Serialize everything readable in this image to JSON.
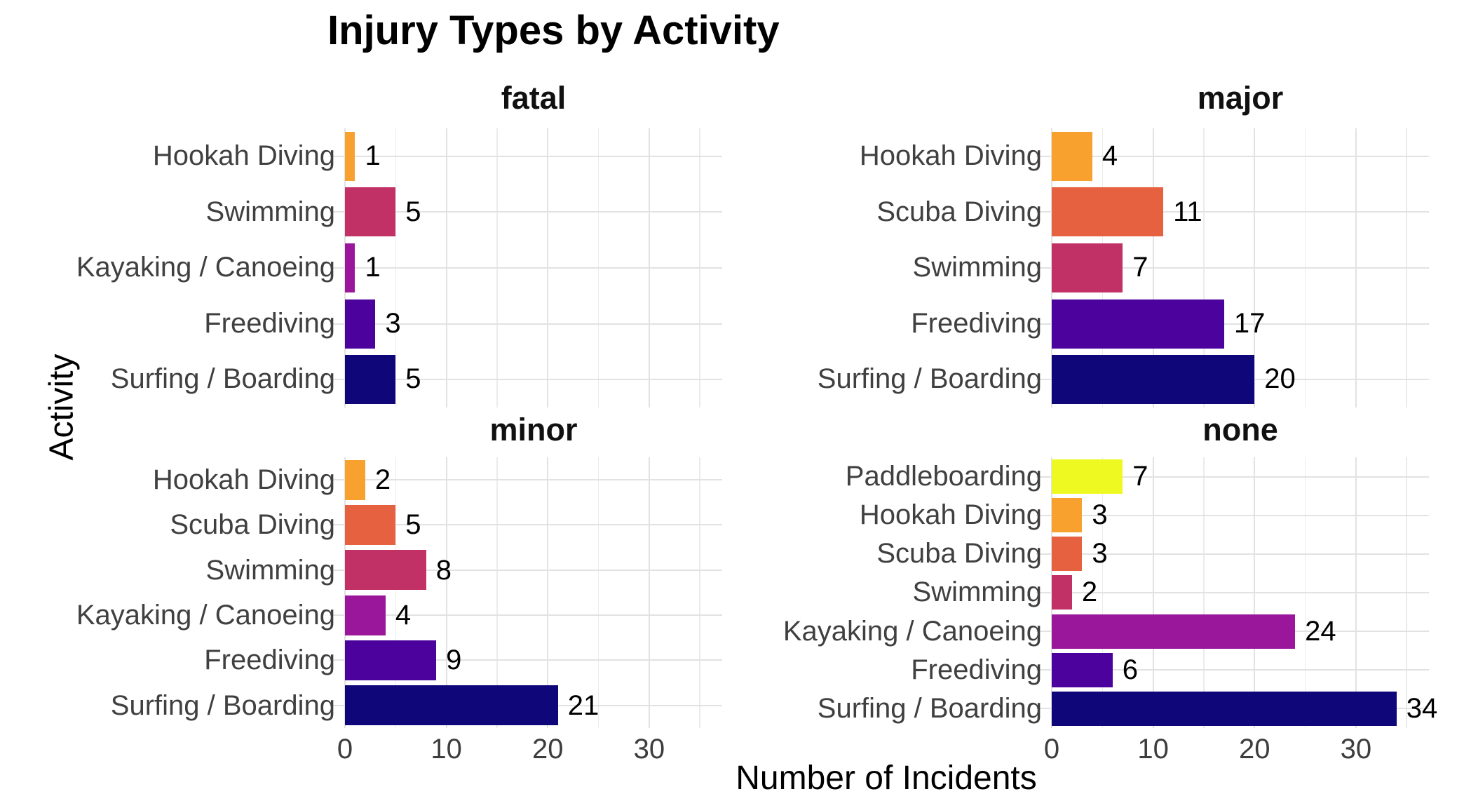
{
  "chart_data": {
    "type": "bar",
    "orientation": "horizontal",
    "title": "Injury Types by Activity",
    "xlabel": "Number of Incidents",
    "ylabel": "Activity",
    "x_ticks": [
      0,
      10,
      20,
      30
    ],
    "x_minor_ticks": [
      5,
      15,
      25,
      35
    ],
    "xlim": [
      0,
      37.2
    ],
    "grid": true,
    "facets": [
      {
        "name": "fatal",
        "categories": [
          "Hookah Diving",
          "Swimming",
          "Kayaking / Canoeing",
          "Freediving",
          "Surfing / Boarding"
        ],
        "values": [
          1,
          5,
          1,
          3,
          5
        ]
      },
      {
        "name": "major",
        "categories": [
          "Hookah Diving",
          "Scuba Diving",
          "Swimming",
          "Freediving",
          "Surfing / Boarding"
        ],
        "values": [
          4,
          11,
          7,
          17,
          20
        ]
      },
      {
        "name": "minor",
        "categories": [
          "Hookah Diving",
          "Scuba Diving",
          "Swimming",
          "Kayaking / Canoeing",
          "Freediving",
          "Surfing / Boarding"
        ],
        "values": [
          2,
          5,
          8,
          4,
          9,
          21
        ]
      },
      {
        "name": "none",
        "categories": [
          "Paddleboarding",
          "Hookah Diving",
          "Scuba Diving",
          "Swimming",
          "Kayaking / Canoeing",
          "Freediving",
          "Surfing / Boarding"
        ],
        "values": [
          7,
          3,
          3,
          2,
          24,
          6,
          34
        ]
      }
    ],
    "colors": {
      "Paddleboarding": "#EEF921",
      "Hookah Diving": "#F9A12F",
      "Scuba Diving": "#E5613F",
      "Swimming": "#C23165",
      "Kayaking / Canoeing": "#9A179C",
      "Freediving": "#4C039E",
      "Surfing / Boarding": "#0E0679"
    },
    "style": {
      "grid_major_color": "#E2E2E2",
      "grid_minor_color": "#EBEBEB",
      "category_label_color": "#404040",
      "tick_label_color": "#3D3D3D",
      "value_label_color": "#000000",
      "background": "#FFFFFF"
    }
  }
}
